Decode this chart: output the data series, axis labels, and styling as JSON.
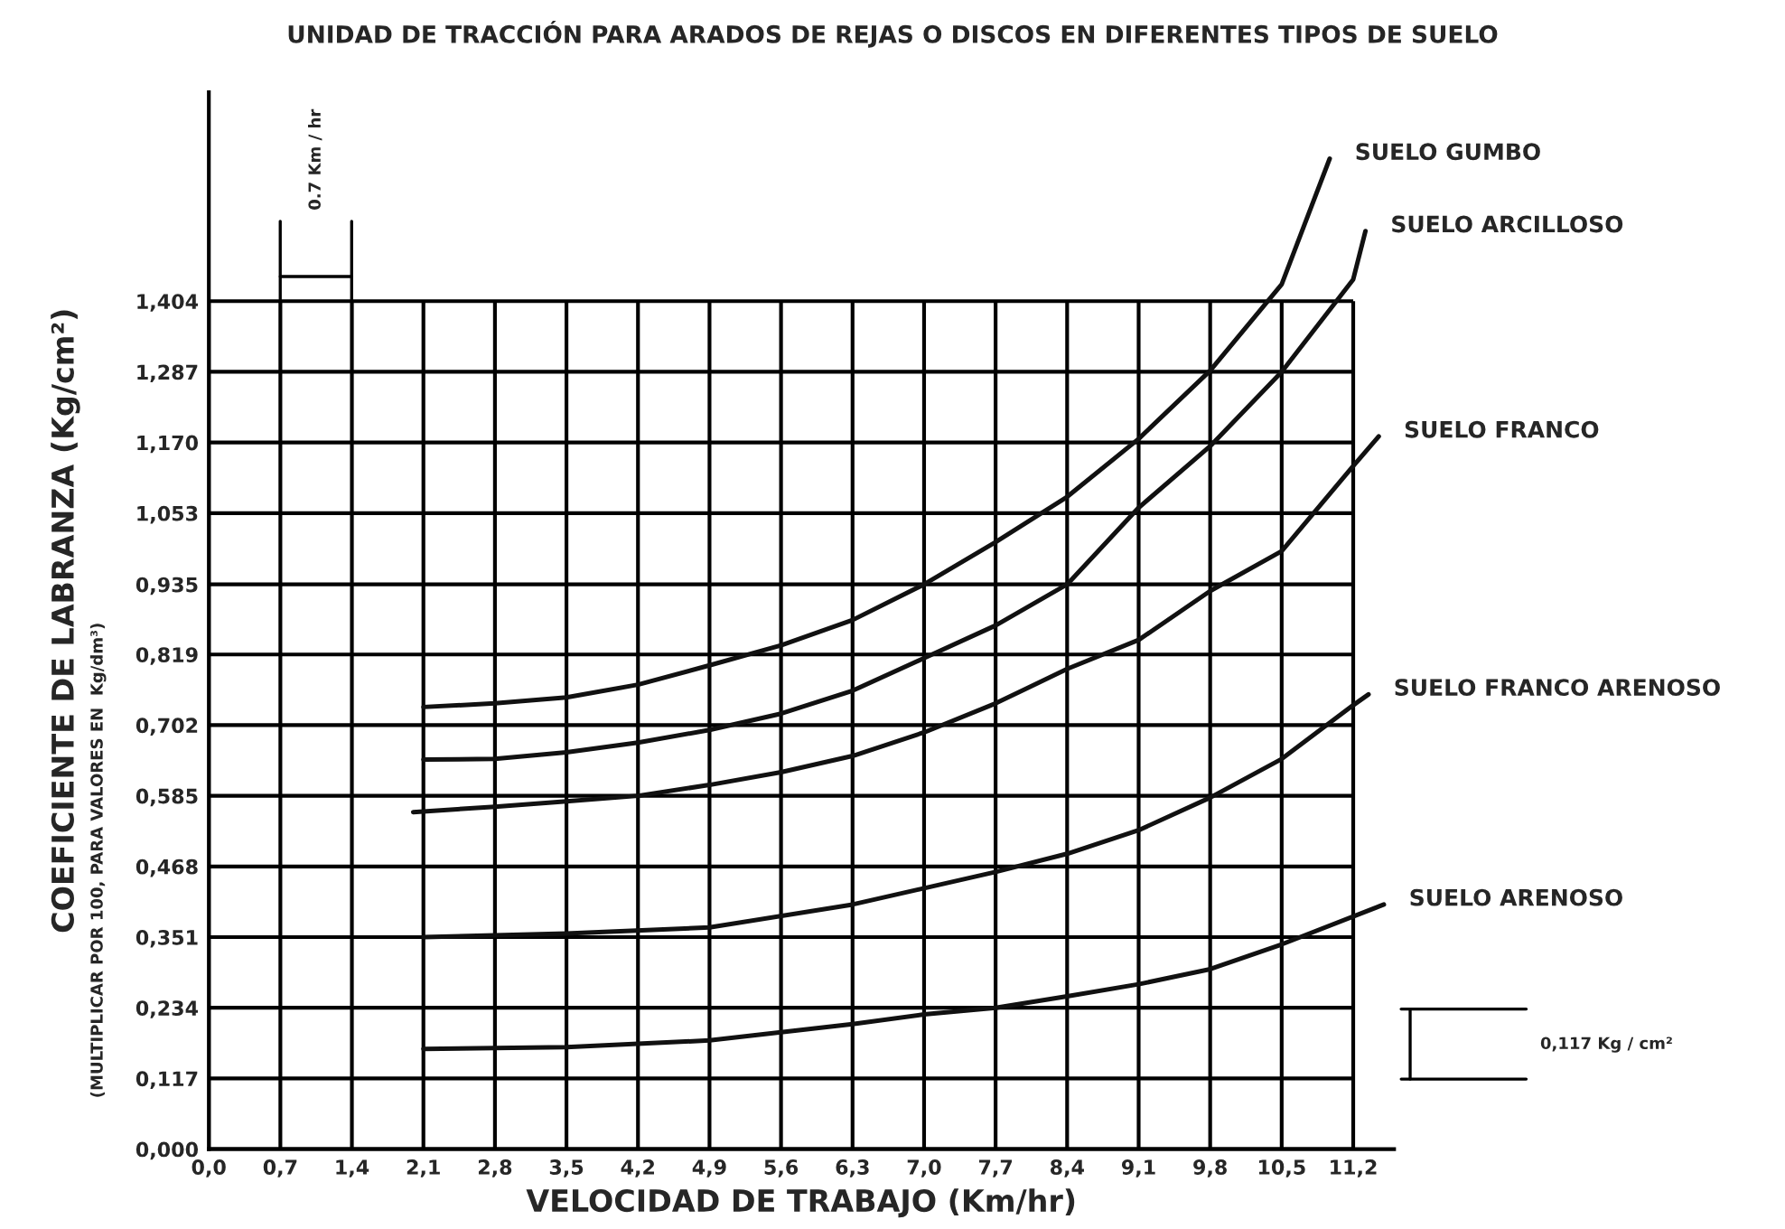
{
  "chart_data": {
    "type": "line",
    "title": "UNIDAD DE TRACCIÓN PARA ARADOS DE REJAS O DISCOS EN DIFERENTES TIPOS DE SUELO",
    "xlabel": "VELOCIDAD DE TRABAJO (Km/hr)",
    "ylabel": "COEFICIENTE DE LABRANZA (Kg/cm²)",
    "annotations": [
      "(MULTIPLICAR POR 100, PARA VALORES EN  Kg/dm³)",
      "0.7 Km / hr",
      "0,117 Kg / cm²"
    ],
    "xlim": [
      0,
      11.6
    ],
    "ylim": [
      0,
      1.75
    ],
    "xticks": [
      {
        "value": 0,
        "label": "0,0"
      },
      {
        "value": 0.7,
        "label": "0,7"
      },
      {
        "value": 1.4,
        "label": "1,4"
      },
      {
        "value": 2.1,
        "label": "2,1"
      },
      {
        "value": 2.8,
        "label": "2,8"
      },
      {
        "value": 3.5,
        "label": "3,5"
      },
      {
        "value": 4.2,
        "label": "4,2"
      },
      {
        "value": 4.9,
        "label": "4,9"
      },
      {
        "value": 5.6,
        "label": "5,6"
      },
      {
        "value": 6.3,
        "label": "6,3"
      },
      {
        "value": 7.0,
        "label": "7,0"
      },
      {
        "value": 7.7,
        "label": "7,7"
      },
      {
        "value": 8.4,
        "label": "8,4"
      },
      {
        "value": 9.1,
        "label": "9,1"
      },
      {
        "value": 9.8,
        "label": "9,8"
      },
      {
        "value": 10.5,
        "label": "10,5"
      },
      {
        "value": 11.2,
        "label": "11,2"
      }
    ],
    "yticks": [
      {
        "value": 0,
        "label": "0,000"
      },
      {
        "value": 0.117,
        "label": "0,117"
      },
      {
        "value": 0.234,
        "label": "0,234"
      },
      {
        "value": 0.351,
        "label": "0,351"
      },
      {
        "value": 0.468,
        "label": "0,468"
      },
      {
        "value": 0.585,
        "label": "0,585"
      },
      {
        "value": 0.702,
        "label": "0,702"
      },
      {
        "value": 0.819,
        "label": "0,819"
      },
      {
        "value": 0.935,
        "label": "0,935"
      },
      {
        "value": 1.053,
        "label": "1,053"
      },
      {
        "value": 1.17,
        "label": "1,170"
      },
      {
        "value": 1.287,
        "label": "1,287"
      },
      {
        "value": 1.404,
        "label": "1,404"
      }
    ],
    "grid": true,
    "legend": false,
    "marker": "none",
    "line_style": "solid",
    "series": [
      {
        "name": "SUELO GUMBO",
        "color": "#111111",
        "x": [
          2.1,
          2.8,
          3.5,
          4.2,
          4.9,
          5.6,
          6.3,
          7.0,
          7.7,
          8.4,
          9.1,
          9.8,
          10.5,
          10.97
        ],
        "values": [
          0.732,
          0.738,
          0.748,
          0.769,
          0.801,
          0.834,
          0.876,
          0.935,
          1.005,
          1.08,
          1.176,
          1.289,
          1.432,
          1.64
        ]
      },
      {
        "name": "SUELO ARCILLOSO",
        "color": "#111111",
        "x": [
          2.1,
          2.8,
          3.5,
          4.2,
          4.9,
          5.6,
          6.3,
          7.0,
          7.7,
          8.4,
          9.1,
          9.8,
          10.5,
          11.2,
          11.32
        ],
        "values": [
          0.645,
          0.646,
          0.657,
          0.673,
          0.694,
          0.721,
          0.759,
          0.813,
          0.867,
          0.935,
          1.062,
          1.164,
          1.287,
          1.44,
          1.52
        ]
      },
      {
        "name": "SUELO FRANCO",
        "color": "#111111",
        "x": [
          2.0,
          2.8,
          3.5,
          4.2,
          4.9,
          5.6,
          6.3,
          7.0,
          7.7,
          8.4,
          9.1,
          9.8,
          10.5,
          11.2,
          11.45
        ],
        "values": [
          0.558,
          0.567,
          0.576,
          0.585,
          0.603,
          0.624,
          0.651,
          0.69,
          0.738,
          0.795,
          0.843,
          0.924,
          0.99,
          1.131,
          1.18
        ]
      },
      {
        "name": "SUELO FRANCO ARENOSO",
        "color": "#111111",
        "x": [
          2.1,
          3.5,
          4.9,
          6.3,
          7.7,
          8.4,
          9.1,
          9.8,
          10.5,
          11.2,
          11.35
        ],
        "values": [
          0.351,
          0.357,
          0.367,
          0.405,
          0.459,
          0.489,
          0.528,
          0.582,
          0.646,
          0.735,
          0.753
        ]
      },
      {
        "name": "SUELO ARENOSO",
        "color": "#111111",
        "x": [
          2.1,
          3.5,
          4.9,
          6.3,
          7.0,
          7.7,
          8.4,
          9.1,
          9.8,
          10.5,
          11.5
        ],
        "values": [
          0.166,
          0.169,
          0.18,
          0.207,
          0.223,
          0.234,
          0.253,
          0.273,
          0.298,
          0.339,
          0.405
        ]
      }
    ]
  }
}
